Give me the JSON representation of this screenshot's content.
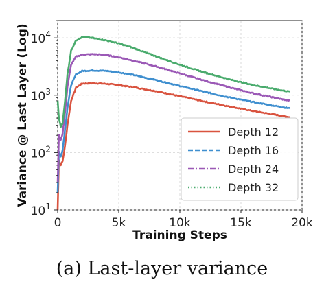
{
  "caption": "(a) Last-layer variance",
  "chart_data": {
    "type": "line",
    "xlabel": "Training Steps",
    "ylabel": "Variance @ Last Layer (Log)",
    "xlim": [
      0,
      20000
    ],
    "ylim": [
      10,
      20000
    ],
    "yscale": "log",
    "grid": true,
    "legend_position": "right",
    "x_ticks": [
      {
        "value": 0,
        "label": "0"
      },
      {
        "value": 5000,
        "label": "5k"
      },
      {
        "value": 10000,
        "label": "10k"
      },
      {
        "value": 15000,
        "label": "15k"
      },
      {
        "value": 20000,
        "label": "20k"
      }
    ],
    "y_ticks": [
      {
        "value": 10,
        "base": "10",
        "exp": "1"
      },
      {
        "value": 100,
        "base": "10",
        "exp": "2"
      },
      {
        "value": 1000,
        "base": "10",
        "exp": "3"
      },
      {
        "value": 10000,
        "base": "10",
        "exp": "4"
      }
    ],
    "series": [
      {
        "name": "Depth 12",
        "color": "#d9533f",
        "dash": "solid",
        "x": [
          0,
          100,
          250,
          400,
          600,
          800,
          1100,
          1500,
          2000,
          3000,
          4000,
          5000,
          6000,
          8000,
          10000,
          12000,
          14000,
          16000,
          18000,
          19000
        ],
        "y": [
          10,
          75,
          60,
          70,
          130,
          300,
          800,
          1350,
          1600,
          1620,
          1580,
          1500,
          1400,
          1180,
          960,
          780,
          640,
          530,
          450,
          415
        ]
      },
      {
        "name": "Depth 16",
        "color": "#3f8fcf",
        "dash": "dashed",
        "x": [
          0,
          100,
          250,
          400,
          600,
          800,
          1100,
          1500,
          2000,
          3000,
          4000,
          5000,
          6000,
          8000,
          10000,
          12000,
          14000,
          16000,
          18000,
          19000
        ],
        "y": [
          20,
          105,
          85,
          110,
          250,
          600,
          1500,
          2300,
          2650,
          2700,
          2650,
          2500,
          2300,
          1850,
          1450,
          1150,
          920,
          760,
          640,
          590
        ]
      },
      {
        "name": "Depth 24",
        "color": "#9b59b6",
        "dash": "dashdot",
        "x": [
          0,
          100,
          250,
          400,
          600,
          800,
          1100,
          1500,
          2000,
          3000,
          4000,
          5000,
          6000,
          8000,
          10000,
          12000,
          14000,
          16000,
          18000,
          19000
        ],
        "y": [
          30,
          200,
          170,
          210,
          500,
          1400,
          3400,
          4700,
          5100,
          5200,
          5000,
          4600,
          4100,
          3200,
          2400,
          1800,
          1380,
          1080,
          880,
          800
        ]
      },
      {
        "name": "Depth 32",
        "color": "#4aab6d",
        "dash": "dotted",
        "x": [
          0,
          100,
          250,
          400,
          600,
          800,
          1100,
          1500,
          2000,
          2500,
          3000,
          4000,
          5000,
          6000,
          8000,
          10000,
          12000,
          14000,
          16000,
          18000,
          19000
        ],
        "y": [
          800,
          400,
          280,
          320,
          800,
          2300,
          6000,
          9000,
          10400,
          10200,
          9800,
          9000,
          8000,
          6900,
          4800,
          3400,
          2500,
          1900,
          1500,
          1250,
          1150
        ]
      }
    ]
  }
}
